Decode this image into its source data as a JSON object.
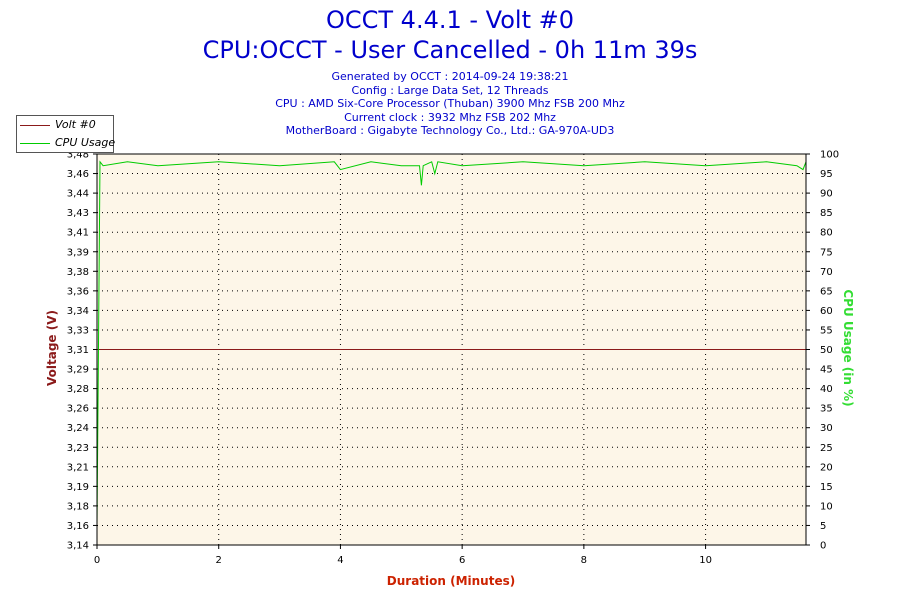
{
  "header": {
    "title": "OCCT 4.4.1 - Volt #0",
    "subtitle": "CPU:OCCT - User Cancelled - 0h 11m 39s",
    "info_lines": [
      "Generated by OCCT : 2014-09-24 19:38:21",
      "Config : Large Data Set, 12 Threads",
      "CPU : AMD Six-Core Processor (Thuban) 3900 Mhz FSB 200 Mhz",
      "Current clock : 3932 Mhz FSB 202 Mhz",
      "MotherBoard : Gigabyte Technology Co., Ltd.: GA-970A-UD3"
    ]
  },
  "colors": {
    "title": "#0000cc",
    "volt_series": "#8b1a1a",
    "cpu_series": "#00cc00",
    "plot_bg": "#fdf6e8",
    "grid": "#000000"
  },
  "chart_data": {
    "type": "line",
    "xlabel": "Duration (Minutes)",
    "ylabel_left": "Voltage (V)",
    "ylabel_right": "CPU Usage (in %)",
    "xlim": [
      0,
      11.65
    ],
    "ylim_left": [
      3.14,
      3.48
    ],
    "ylim_right": [
      0,
      100
    ],
    "x_ticks": [
      "0",
      "2",
      "4",
      "6",
      "8",
      "10"
    ],
    "y_left_ticks": [
      "3,14",
      "3,16",
      "3,18",
      "3,19",
      "3,21",
      "3,23",
      "3,24",
      "3,26",
      "3,28",
      "3,29",
      "3,31",
      "3,33",
      "3,34",
      "3,36",
      "3,38",
      "3,39",
      "3,41",
      "3,43",
      "3,44",
      "3,46",
      "3,48"
    ],
    "y_right_ticks": [
      "0",
      "5",
      "10",
      "15",
      "20",
      "25",
      "30",
      "35",
      "40",
      "45",
      "50",
      "55",
      "60",
      "65",
      "70",
      "75",
      "80",
      "85",
      "90",
      "95",
      "100"
    ],
    "grid": true,
    "legend_position": "top-left",
    "series": [
      {
        "name": "Volt #0",
        "axis": "left",
        "x": [
          0,
          11.65
        ],
        "values": [
          3.31,
          3.31
        ]
      },
      {
        "name": "CPU Usage",
        "axis": "right",
        "x": [
          0,
          0.05,
          0.1,
          0.5,
          1.0,
          2.0,
          3.0,
          3.9,
          4.0,
          4.5,
          5.0,
          5.3,
          5.33,
          5.36,
          5.5,
          5.55,
          5.6,
          6.0,
          7.0,
          8.0,
          9.0,
          10.0,
          11.0,
          11.5,
          11.6,
          11.65
        ],
        "values": [
          5,
          98,
          97,
          98,
          97,
          98,
          97,
          98,
          96,
          98,
          97,
          97,
          92,
          97,
          98,
          95,
          98,
          97,
          98,
          97,
          98,
          97,
          98,
          97,
          96,
          98
        ]
      }
    ]
  }
}
